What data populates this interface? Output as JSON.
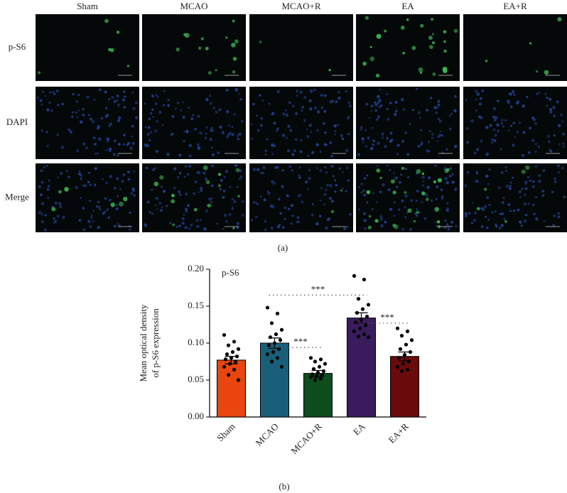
{
  "figure": {
    "columns": [
      "Sham",
      "MCAO",
      "MCAO+R",
      "EA",
      "EA+R"
    ],
    "rows": [
      "p-S6",
      "DAPI",
      "Merge"
    ],
    "panel_a_label": "(a)",
    "panel_b_label": "(b)"
  },
  "chart_data": {
    "type": "bar",
    "title": "p-S6",
    "y_label": [
      "Mean optical density",
      "of p-S6 expression"
    ],
    "categories": [
      "Sham",
      "MCAO",
      "MCAO+R",
      "EA",
      "EA+R"
    ],
    "values": [
      0.077,
      0.1,
      0.059,
      0.134,
      0.082
    ],
    "errors": [
      0.005,
      0.007,
      0.004,
      0.007,
      0.006
    ],
    "colors": [
      "#e8450f",
      "#1a5f7a",
      "#0d4d1e",
      "#3a1c5e",
      "#6b0a0a"
    ],
    "points": [
      [
        0.111,
        0.102,
        0.097,
        0.092,
        0.088,
        0.085,
        0.082,
        0.08,
        0.078,
        0.075,
        0.072,
        0.068,
        0.064,
        0.057,
        0.05
      ],
      [
        0.148,
        0.14,
        0.127,
        0.118,
        0.112,
        0.108,
        0.104,
        0.1,
        0.097,
        0.092,
        0.088,
        0.085,
        0.08,
        0.075,
        0.068
      ],
      [
        0.08,
        0.078,
        0.075,
        0.072,
        0.068,
        0.065,
        0.062,
        0.06,
        0.058,
        0.057,
        0.055,
        0.054,
        0.052,
        0.05
      ],
      [
        0.191,
        0.186,
        0.16,
        0.152,
        0.146,
        0.141,
        0.136,
        0.132,
        0.128,
        0.124,
        0.12,
        0.116,
        0.112,
        0.109,
        0.108
      ],
      [
        0.12,
        0.116,
        0.11,
        0.104,
        0.098,
        0.092,
        0.088,
        0.084,
        0.08,
        0.075,
        0.072,
        0.068,
        0.064,
        0.062
      ]
    ],
    "annotations": [
      {
        "text": "***",
        "from": 1,
        "to": 3,
        "y": 0.165
      },
      {
        "text": "***",
        "from": 1,
        "to": 2,
        "y": 0.094
      },
      {
        "text": "***",
        "from": 3,
        "to": 4,
        "y": 0.127
      }
    ],
    "ylim": [
      0,
      0.2
    ],
    "yticks": [
      {
        "value": 0,
        "label": "0.00"
      },
      {
        "value": 0.05,
        "label": "0.05"
      },
      {
        "value": 0.1,
        "label": "0.10"
      },
      {
        "value": 0.15,
        "label": "0.15"
      },
      {
        "value": 0.2,
        "label": "0.20"
      }
    ]
  }
}
